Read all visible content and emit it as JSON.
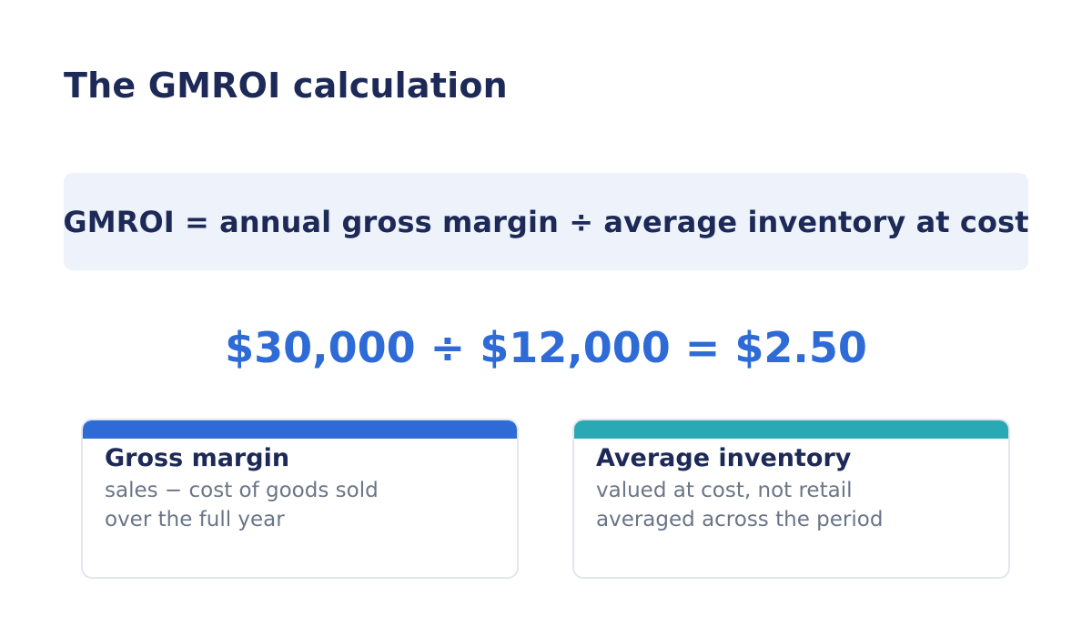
{
  "title": "The GMROI calculation",
  "formula": "GMROI = annual gross margin ÷ average inventory at cost",
  "example": "$30,000 ÷ $12,000 = $2.50",
  "cards": [
    {
      "title": "Gross margin",
      "lines": [
        "sales − cost of goods sold",
        "over the full year"
      ],
      "accent": "#2e6bd6"
    },
    {
      "title": "Average inventory",
      "lines": [
        "valued at cost, not retail",
        "averaged across the period"
      ],
      "accent": "#2aa8b4"
    }
  ],
  "colors": {
    "navy": "#1d2a57",
    "blue": "#2e6bd6",
    "teal": "#2aa8b4",
    "formula_bg": "#edf2fb",
    "muted_text": "#6b7588"
  }
}
